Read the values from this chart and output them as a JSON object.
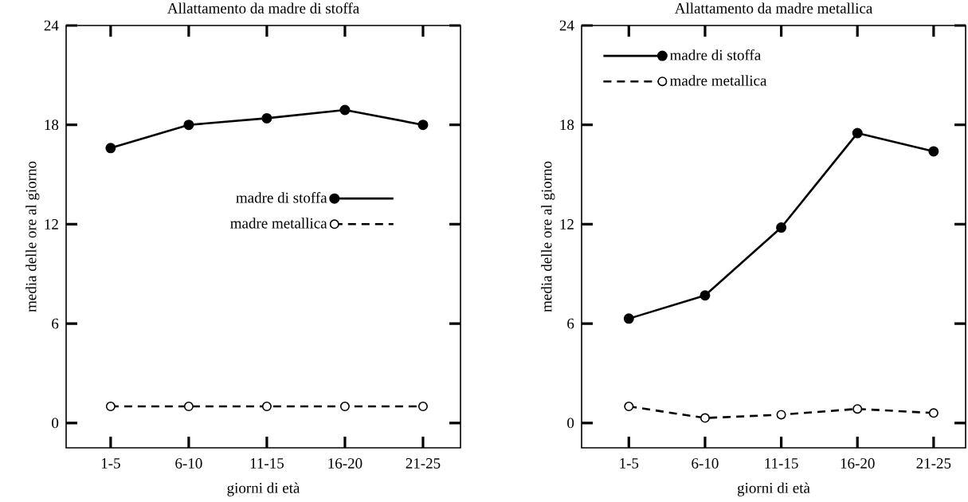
{
  "chart_data": [
    {
      "type": "line",
      "title": "Allattamento da madre di stoffa",
      "xlabel": "giorni di età",
      "ylabel": "media delle ore al giorno",
      "categories": [
        "1-5",
        "6-10",
        "11-15",
        "16-20",
        "21-25"
      ],
      "ylim": [
        -1.5,
        24
      ],
      "yticks": [
        0,
        6,
        12,
        18,
        24
      ],
      "marker": "circle",
      "legend": "center",
      "series": [
        {
          "name": "madre di stoffa",
          "color": "#000000",
          "line_style": "solid",
          "values": [
            16.6,
            18.0,
            18.4,
            18.9,
            18.0
          ]
        },
        {
          "name": "madre metallica",
          "color": "#000000",
          "line_style": "dashed",
          "values": [
            1.0,
            1.0,
            1.0,
            1.0,
            1.0
          ]
        }
      ]
    },
    {
      "type": "line",
      "title": "Allattamento da madre metallica",
      "xlabel": "giorni di età",
      "ylabel": "media delle ore al giorno",
      "categories": [
        "1-5",
        "6-10",
        "11-15",
        "16-20",
        "21-25"
      ],
      "ylim": [
        -1.5,
        24
      ],
      "yticks": [
        0,
        6,
        12,
        18,
        24
      ],
      "marker": "circle",
      "legend": "top left",
      "series": [
        {
          "name": "madre di stoffa",
          "color": "#000000",
          "line_style": "solid",
          "values": [
            6.3,
            7.7,
            11.8,
            17.5,
            16.4
          ]
        },
        {
          "name": "madre metallica",
          "color": "#000000",
          "line_style": "dashed",
          "values": [
            1.0,
            0.3,
            0.5,
            0.85,
            0.6
          ]
        }
      ]
    }
  ]
}
